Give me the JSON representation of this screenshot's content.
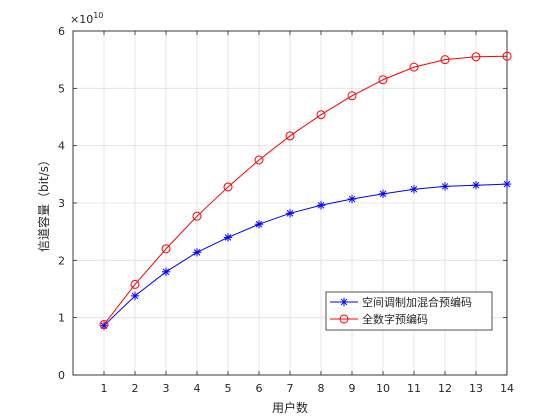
{
  "chart_data": {
    "type": "line",
    "xlabel": "用户数",
    "ylabel": "信道容量（bit/s）",
    "y_exponent_label": "×10",
    "y_exponent_power": "10",
    "x": [
      1,
      2,
      3,
      4,
      5,
      6,
      7,
      8,
      9,
      10,
      11,
      12,
      13,
      14
    ],
    "x_ticks": [
      "1",
      "2",
      "3",
      "4",
      "5",
      "6",
      "7",
      "8",
      "9",
      "10",
      "11",
      "12",
      "13",
      "14"
    ],
    "y_ticks": [
      "0",
      "1",
      "2",
      "3",
      "4",
      "5",
      "6"
    ],
    "xlim": [
      0,
      14
    ],
    "ylim": [
      0,
      6
    ],
    "grid": true,
    "legend_placement": "bottom-right",
    "series": [
      {
        "name": "空间调制加混合预编码",
        "color": "#0000ff",
        "marker": "asterisk",
        "values": [
          0.86,
          1.38,
          1.8,
          2.14,
          2.4,
          2.63,
          2.82,
          2.96,
          3.07,
          3.16,
          3.24,
          3.29,
          3.31,
          3.33
        ]
      },
      {
        "name": "全数字预编码",
        "color": "#ff0000",
        "marker": "circle",
        "values": [
          0.88,
          1.58,
          2.2,
          2.77,
          3.28,
          3.75,
          4.17,
          4.54,
          4.87,
          5.15,
          5.37,
          5.5,
          5.55,
          5.56
        ]
      }
    ]
  }
}
